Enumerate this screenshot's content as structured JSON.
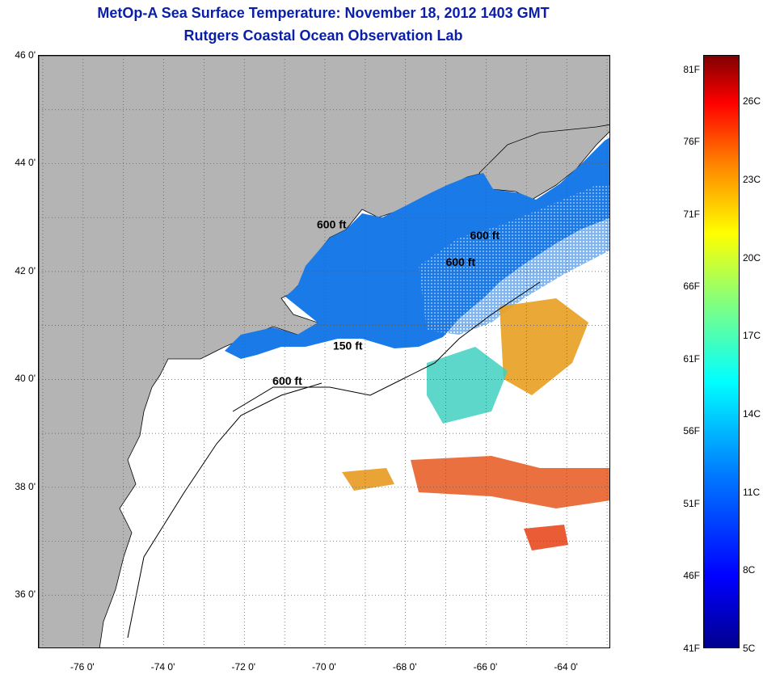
{
  "header": {
    "title": "MetOp-A Sea Surface Temperature:  November 18, 2012 1403 GMT",
    "subtitle": "Rutgers Coastal Ocean Observation Lab"
  },
  "map": {
    "lat_labels": [
      "46 0'",
      "44 0'",
      "42 0'",
      "40 0'",
      "38 0'",
      "36 0'"
    ],
    "lon_labels": [
      "-76 0'",
      "-74 0'",
      "-72 0'",
      "-70 0'",
      "-68 0'",
      "-66 0'",
      "-64 0'"
    ],
    "depth_labels": [
      {
        "text": "600 ft",
        "lon": -70.2,
        "lat": 42.8
      },
      {
        "text": "600 ft",
        "lon": -66.4,
        "lat": 42.6
      },
      {
        "text": "600 ft",
        "lon": -67.0,
        "lat": 42.1
      },
      {
        "text": "150 ft",
        "lon": -69.8,
        "lat": 40.55
      },
      {
        "text": "600 ft",
        "lon": -71.3,
        "lat": 39.9
      }
    ],
    "colors": {
      "land": "#b4b4b4",
      "water_cold": "#1a7ae8",
      "water_warm": "#e8a020"
    }
  },
  "colorbar": {
    "fahrenheit": [
      "81F",
      "76F",
      "71F",
      "66F",
      "61F",
      "56F",
      "51F",
      "46F",
      "41F"
    ],
    "celsius": [
      "26C",
      "23C",
      "20C",
      "17C",
      "14C",
      "11C",
      "8C",
      "5C"
    ]
  }
}
